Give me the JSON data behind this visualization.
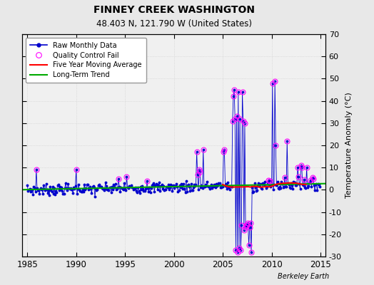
{
  "title": "FINNEY CREEK WASHINGTON",
  "subtitle": "48.403 N, 121.790 W (United States)",
  "ylabel": "Temperature Anomaly (°C)",
  "credit": "Berkeley Earth",
  "xlim": [
    1984.5,
    2015.5
  ],
  "ylim": [
    -30,
    70
  ],
  "yticks": [
    -30,
    -20,
    -10,
    0,
    10,
    20,
    30,
    40,
    50,
    60,
    70
  ],
  "xticks": [
    1985,
    1990,
    1995,
    2000,
    2005,
    2010,
    2015
  ],
  "bg_color": "#e8e8e8",
  "plot_bg": "#f0f0f0",
  "raw_color": "#0000cc",
  "qc_color": "#ff00ff",
  "ma_color": "#ff0000",
  "trend_color": "#00aa00",
  "grid_color": "#cccccc",
  "figsize": [
    5.24,
    4.0
  ],
  "dpi": 100
}
